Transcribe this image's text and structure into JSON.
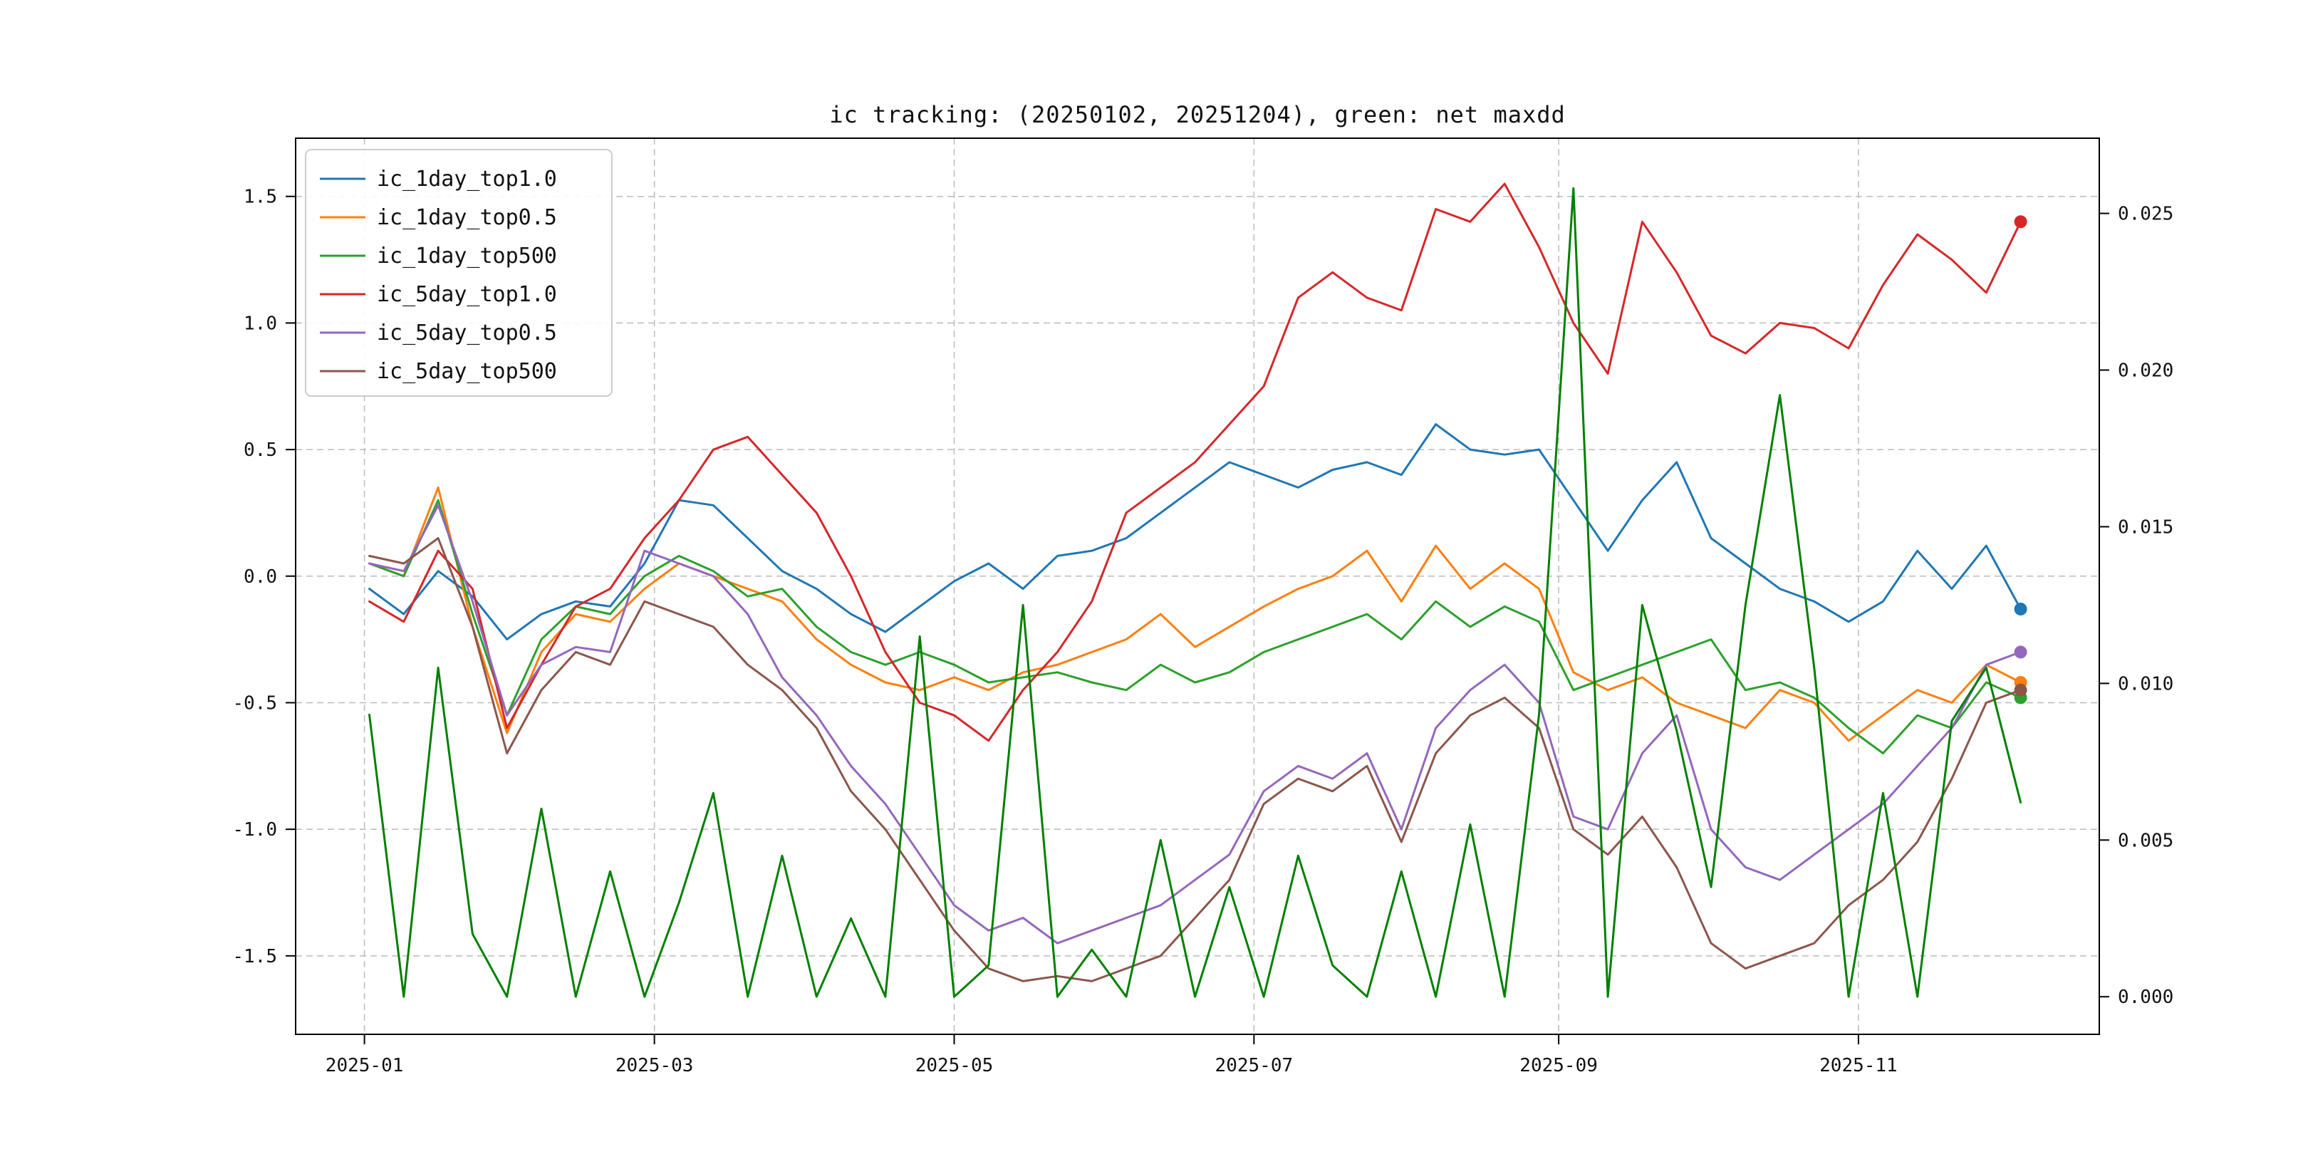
{
  "figure": {
    "background": "#ffffff"
  },
  "chart_data": {
    "type": "line",
    "title": "ic tracking: (20250102, 20251204), green: net maxdd",
    "legend_position": "upper left",
    "grid": true,
    "x_axis": {
      "lim": [
        -14,
        353
      ],
      "tick_days": [
        0,
        59,
        120,
        181,
        243,
        304
      ],
      "tick_labels": [
        "2025-01",
        "2025-03",
        "2025-05",
        "2025-07",
        "2025-09",
        "2025-11"
      ]
    },
    "left_axis": {
      "lim": [
        -1.81,
        1.73
      ],
      "ticks": [
        1.5,
        1.0,
        0.5,
        0.0,
        -0.5,
        -1.0,
        -1.5
      ],
      "tick_labels": [
        "1.5",
        "1.0",
        "0.5",
        "0.0",
        "-0.5",
        "-1.0",
        "-1.5"
      ]
    },
    "right_axis": {
      "lim": [
        -0.0012,
        0.0274
      ],
      "ticks": [
        0.0,
        0.005,
        0.01,
        0.015,
        0.02,
        0.025
      ],
      "tick_labels": [
        "0.000",
        "0.005",
        "0.010",
        "0.015",
        "0.020",
        "0.025"
      ]
    },
    "x_days": [
      1,
      8,
      15,
      22,
      29,
      36,
      43,
      50,
      57,
      64,
      71,
      78,
      85,
      92,
      99,
      106,
      113,
      120,
      127,
      134,
      141,
      148,
      155,
      162,
      169,
      176,
      183,
      190,
      197,
      204,
      211,
      218,
      225,
      232,
      239,
      246,
      253,
      260,
      267,
      274,
      281,
      288,
      295,
      302,
      309,
      316,
      323,
      330,
      337
    ],
    "series": [
      {
        "name": "ic_1day_top1.0",
        "label": "ic_1day_top1.0",
        "color": "#1f77b4",
        "axis": "left",
        "end_marker": true,
        "in_legend": true,
        "values": [
          -0.05,
          -0.15,
          0.02,
          -0.08,
          -0.25,
          -0.15,
          -0.1,
          -0.12,
          0.05,
          0.3,
          0.28,
          0.15,
          0.02,
          -0.05,
          -0.15,
          -0.22,
          -0.12,
          -0.02,
          0.05,
          -0.05,
          0.08,
          0.1,
          0.15,
          0.25,
          0.35,
          0.45,
          0.4,
          0.35,
          0.42,
          0.45,
          0.4,
          0.6,
          0.5,
          0.48,
          0.5,
          0.3,
          0.1,
          0.3,
          0.45,
          0.15,
          0.05,
          -0.05,
          -0.1,
          -0.18,
          -0.1,
          0.1,
          -0.05,
          0.12,
          -0.13
        ]
      },
      {
        "name": "ic_1day_top0.5",
        "label": "ic_1day_top0.5",
        "color": "#ff7f0e",
        "axis": "left",
        "end_marker": true,
        "in_legend": true,
        "values": [
          0.05,
          0.0,
          0.35,
          -0.2,
          -0.62,
          -0.3,
          -0.15,
          -0.18,
          -0.05,
          0.05,
          0.0,
          -0.05,
          -0.1,
          -0.25,
          -0.35,
          -0.42,
          -0.45,
          -0.4,
          -0.45,
          -0.38,
          -0.35,
          -0.3,
          -0.25,
          -0.15,
          -0.28,
          -0.2,
          -0.12,
          -0.05,
          0.0,
          0.1,
          -0.1,
          0.12,
          -0.05,
          0.05,
          -0.05,
          -0.38,
          -0.45,
          -0.4,
          -0.5,
          -0.55,
          -0.6,
          -0.45,
          -0.5,
          -0.65,
          -0.55,
          -0.45,
          -0.5,
          -0.35,
          -0.42
        ]
      },
      {
        "name": "ic_1day_top500",
        "label": "ic_1day_top500",
        "color": "#2ca02c",
        "axis": "left",
        "end_marker": true,
        "in_legend": true,
        "values": [
          0.05,
          0.0,
          0.3,
          -0.15,
          -0.55,
          -0.25,
          -0.12,
          -0.15,
          0.0,
          0.08,
          0.02,
          -0.08,
          -0.05,
          -0.2,
          -0.3,
          -0.35,
          -0.3,
          -0.35,
          -0.42,
          -0.4,
          -0.38,
          -0.42,
          -0.45,
          -0.35,
          -0.42,
          -0.38,
          -0.3,
          -0.25,
          -0.2,
          -0.15,
          -0.25,
          -0.1,
          -0.2,
          -0.12,
          -0.18,
          -0.45,
          -0.4,
          -0.35,
          -0.3,
          -0.25,
          -0.45,
          -0.42,
          -0.48,
          -0.6,
          -0.7,
          -0.55,
          -0.6,
          -0.42,
          -0.48
        ]
      },
      {
        "name": "ic_5day_top1.0",
        "label": "ic_5day_top1.0",
        "color": "#d62728",
        "axis": "left",
        "end_marker": true,
        "in_legend": true,
        "values": [
          -0.1,
          -0.18,
          0.1,
          -0.05,
          -0.6,
          -0.35,
          -0.12,
          -0.05,
          0.15,
          0.3,
          0.5,
          0.55,
          0.4,
          0.25,
          0.0,
          -0.3,
          -0.5,
          -0.55,
          -0.65,
          -0.45,
          -0.3,
          -0.1,
          0.25,
          0.35,
          0.45,
          0.6,
          0.75,
          1.1,
          1.2,
          1.1,
          1.05,
          1.45,
          1.4,
          1.55,
          1.3,
          1.0,
          0.8,
          1.4,
          1.2,
          0.95,
          0.88,
          1.0,
          0.98,
          0.9,
          1.15,
          1.35,
          1.25,
          1.12,
          1.4
        ]
      },
      {
        "name": "ic_5day_top0.5",
        "label": "ic_5day_top0.5",
        "color": "#9467bd",
        "axis": "left",
        "end_marker": true,
        "in_legend": true,
        "values": [
          0.05,
          0.02,
          0.28,
          -0.1,
          -0.55,
          -0.35,
          -0.28,
          -0.3,
          0.1,
          0.05,
          0.0,
          -0.15,
          -0.4,
          -0.55,
          -0.75,
          -0.9,
          -1.1,
          -1.3,
          -1.4,
          -1.35,
          -1.45,
          -1.4,
          -1.35,
          -1.3,
          -1.2,
          -1.1,
          -0.85,
          -0.75,
          -0.8,
          -0.7,
          -1.0,
          -0.6,
          -0.45,
          -0.35,
          -0.5,
          -0.95,
          -1.0,
          -0.7,
          -0.55,
          -1.0,
          -1.15,
          -1.2,
          -1.1,
          -1.0,
          -0.9,
          -0.75,
          -0.6,
          -0.35,
          -0.3
        ]
      },
      {
        "name": "ic_5day_top500",
        "label": "ic_5day_top500",
        "color": "#8c564b",
        "axis": "left",
        "end_marker": true,
        "in_legend": true,
        "values": [
          0.08,
          0.05,
          0.15,
          -0.2,
          -0.7,
          -0.45,
          -0.3,
          -0.35,
          -0.1,
          -0.15,
          -0.2,
          -0.35,
          -0.45,
          -0.6,
          -0.85,
          -1.0,
          -1.2,
          -1.4,
          -1.55,
          -1.6,
          -1.58,
          -1.6,
          -1.55,
          -1.5,
          -1.35,
          -1.2,
          -0.9,
          -0.8,
          -0.85,
          -0.75,
          -1.05,
          -0.7,
          -0.55,
          -0.48,
          -0.6,
          -1.0,
          -1.1,
          -0.95,
          -1.15,
          -1.45,
          -1.55,
          -1.5,
          -1.45,
          -1.3,
          -1.2,
          -1.05,
          -0.8,
          -0.5,
          -0.45
        ]
      },
      {
        "name": "net_maxdd",
        "label": "net maxdd",
        "color": "#008000",
        "axis": "right",
        "end_marker": false,
        "in_legend": false,
        "values": [
          0.009,
          0.0,
          0.0105,
          0.002,
          0.0,
          0.006,
          0.0,
          0.004,
          0.0,
          0.003,
          0.0065,
          0.0,
          0.0045,
          0.0,
          0.0025,
          0.0,
          0.0115,
          0.0,
          0.001,
          0.0125,
          0.0,
          0.0015,
          0.0,
          0.005,
          0.0,
          0.0035,
          0.0,
          0.0045,
          0.001,
          0.0,
          0.004,
          0.0,
          0.0055,
          0.0,
          0.009,
          0.0258,
          0.0,
          0.0125,
          0.0085,
          0.0035,
          0.0125,
          0.0192,
          0.0105,
          0.0,
          0.0065,
          0.0,
          0.0088,
          0.0105,
          0.0062
        ]
      }
    ],
    "style": {
      "grid_color": "#bbbbbb",
      "frame_color": "#000000",
      "text_color": "#111111",
      "line_width": 3,
      "marker_radius": 9
    }
  }
}
